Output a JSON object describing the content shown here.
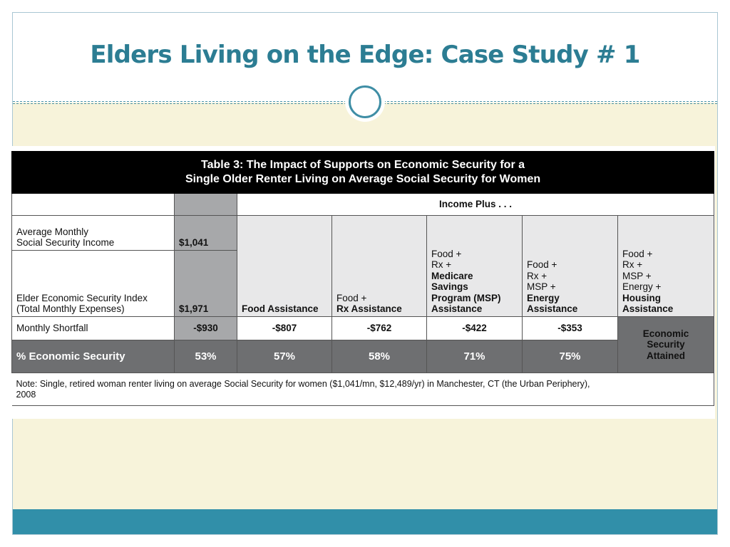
{
  "slide": {
    "title": "Elders Living on the Edge: Case Study # 1"
  },
  "table": {
    "title_line1": "Table 3: The Impact of Supports on Economic Security for a",
    "title_line2": "Single Older Renter Living on Average Social Security for Women",
    "income_plus": "Income Plus . . .",
    "rows": {
      "income_label_line1": "Average Monthly",
      "income_label_line2": "Social Security Income",
      "income_value": "$1,041",
      "index_label_line1": "Elder Economic Security Index",
      "index_label_line2": "(Total Monthly Expenses)",
      "index_value": "$1,971",
      "shortfall_label": "Monthly Shortfall",
      "shortfall_value": "-$930",
      "pct_label": "% Economic Security",
      "pct_value": "53%"
    },
    "supports": [
      {
        "lines": [],
        "bold_lines": [
          "Food Assistance"
        ],
        "shortfall": "-$807",
        "pct": "57%"
      },
      {
        "lines": [
          "Food +"
        ],
        "bold_lines": [
          "Rx Assistance"
        ],
        "shortfall": "-$762",
        "pct": "58%"
      },
      {
        "lines": [
          "Food +",
          "Rx +"
        ],
        "bold_lines": [
          "Medicare",
          "Savings",
          "Program (MSP)",
          "Assistance"
        ],
        "shortfall": "-$422",
        "pct": "71%"
      },
      {
        "lines": [
          "Food +",
          "Rx +",
          "MSP +"
        ],
        "bold_lines": [
          "Energy",
          "Assistance"
        ],
        "shortfall": "-$353",
        "pct": "75%"
      },
      {
        "lines": [
          "Food +",
          "Rx +",
          "MSP +",
          "Energy +"
        ],
        "bold_lines": [
          "Housing",
          "Assistance"
        ]
      }
    ],
    "attained_line1": "Economic",
    "attained_line2": "Security",
    "attained_line3": "Attained",
    "note_line1": "Note: Single, retired woman renter living on average Social Security for women ($1,041/mn, $12,489/yr) in Manchester, CT (the Urban Periphery),",
    "note_line2": "2008"
  },
  "colors": {
    "title": "#2c7d93",
    "footer_bar": "#318fa9",
    "background": "#f7f3da",
    "table_gray": "#a7a8aa",
    "table_dark": "#6e6f71"
  }
}
